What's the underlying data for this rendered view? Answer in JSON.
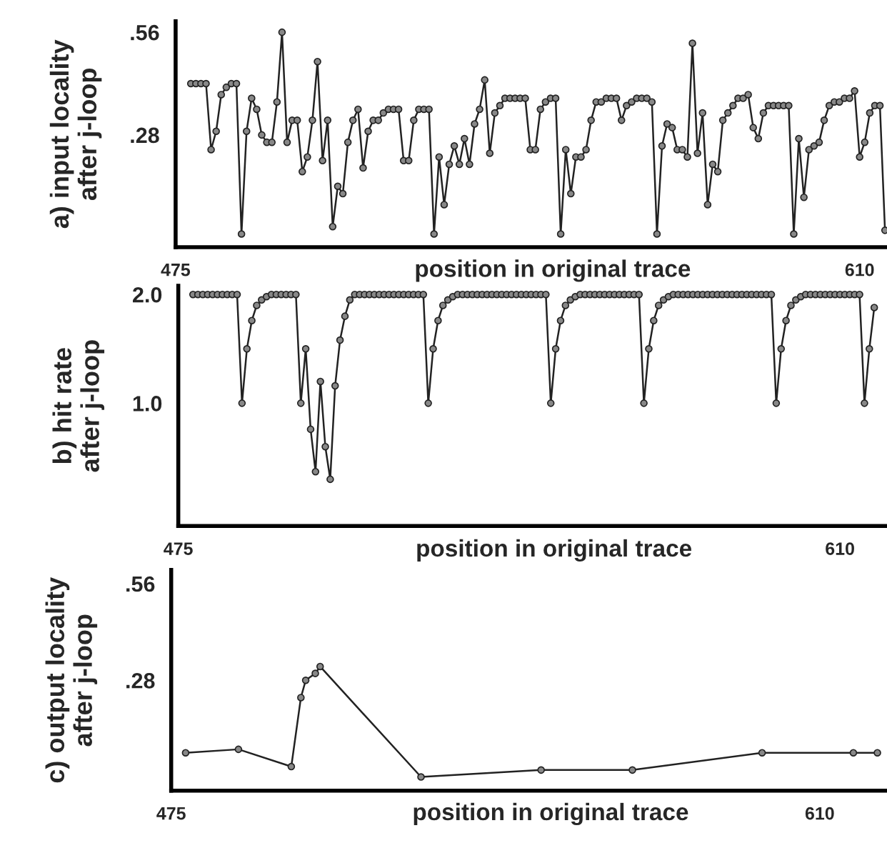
{
  "chart_data": [
    {
      "type": "line",
      "ylabel": "a) input locality\nafter j-loop",
      "xlabel": "position in original trace",
      "xlim": [
        475,
        615.4
      ],
      "ylim": [
        -0.026,
        0.59
      ],
      "xticks": [
        475,
        610
      ],
      "yticks": [
        {
          "value": 0.56,
          "label": ".56"
        },
        {
          "value": 0.28,
          "label": ".28"
        }
      ],
      "grid": false,
      "marker": "circle",
      "line_style": "solid",
      "series": [
        {
          "color": "#222222",
          "x": [
            478,
            479,
            480,
            481,
            482,
            483,
            484,
            485,
            486,
            487,
            488,
            489,
            490,
            491,
            492,
            493,
            494,
            495,
            496,
            497,
            498,
            499,
            500,
            501,
            502,
            503,
            504,
            505,
            506,
            507,
            508,
            509,
            510,
            511,
            512,
            513,
            514,
            515,
            516,
            517,
            518,
            519,
            520,
            521,
            522,
            523,
            524,
            525,
            526,
            527,
            528,
            529,
            530,
            531,
            532,
            533,
            534,
            535,
            536,
            537,
            538,
            539,
            540,
            541,
            542,
            543,
            544,
            545,
            546,
            547,
            548,
            549,
            550,
            551,
            552,
            553,
            554,
            555,
            556,
            557,
            558,
            559,
            560,
            561,
            562,
            563,
            564,
            565,
            566,
            567,
            568,
            569,
            570,
            571,
            572,
            573,
            574,
            575,
            576,
            577,
            578,
            579,
            580,
            581,
            582,
            583,
            584,
            585,
            586,
            587,
            588,
            589,
            590,
            591,
            592,
            593,
            594,
            595,
            596,
            597,
            598,
            599,
            600,
            601,
            602,
            603,
            604,
            605,
            606,
            607,
            608,
            609,
            610,
            611,
            612,
            613,
            614,
            615
          ],
          "values": [
            0.42,
            0.42,
            0.42,
            0.42,
            0.24,
            0.29,
            0.39,
            0.41,
            0.42,
            0.42,
            0.01,
            0.29,
            0.38,
            0.35,
            0.28,
            0.26,
            0.26,
            0.37,
            0.56,
            0.26,
            0.32,
            0.32,
            0.18,
            0.22,
            0.32,
            0.48,
            0.21,
            0.32,
            0.03,
            0.14,
            0.12,
            0.26,
            0.32,
            0.35,
            0.19,
            0.29,
            0.32,
            0.32,
            0.34,
            0.35,
            0.35,
            0.35,
            0.21,
            0.21,
            0.32,
            0.35,
            0.35,
            0.35,
            0.01,
            0.22,
            0.09,
            0.2,
            0.25,
            0.2,
            0.27,
            0.2,
            0.31,
            0.35,
            0.43,
            0.23,
            0.34,
            0.36,
            0.38,
            0.38,
            0.38,
            0.38,
            0.38,
            0.24,
            0.24,
            0.35,
            0.37,
            0.38,
            0.38,
            0.01,
            0.24,
            0.12,
            0.22,
            0.22,
            0.24,
            0.32,
            0.37,
            0.37,
            0.38,
            0.38,
            0.38,
            0.32,
            0.36,
            0.37,
            0.38,
            0.38,
            0.38,
            0.37,
            0.01,
            0.25,
            0.31,
            0.3,
            0.24,
            0.24,
            0.22,
            0.53,
            0.23,
            0.34,
            0.09,
            0.2,
            0.18,
            0.32,
            0.34,
            0.36,
            0.38,
            0.38,
            0.39,
            0.3,
            0.27,
            0.34,
            0.36,
            0.36,
            0.36,
            0.36,
            0.36,
            0.01,
            0.27,
            0.11,
            0.24,
            0.25,
            0.26,
            0.32,
            0.36,
            0.37,
            0.37,
            0.38,
            0.38,
            0.4,
            0.22,
            0.26,
            0.34,
            0.36,
            0.36,
            0.02
          ]
        }
      ]
    },
    {
      "type": "line",
      "ylabel": "b) hit rate\nafter j-loop",
      "xlabel": "position in original trace",
      "xlim": [
        475,
        619.6
      ],
      "ylim": [
        -0.13,
        2.08
      ],
      "xticks": [
        475,
        610
      ],
      "yticks": [
        {
          "value": 2,
          "label": "2.0"
        },
        {
          "value": 1,
          "label": "1.0"
        }
      ],
      "grid": false,
      "marker": "circle",
      "line_style": "solid",
      "series": [
        {
          "color": "#222222",
          "x": [
            478,
            479,
            480,
            481,
            482,
            483,
            484,
            485,
            486,
            487,
            488,
            489,
            490,
            491,
            492,
            493,
            494,
            495,
            496,
            497,
            498,
            499,
            500,
            501,
            502,
            503,
            504,
            505,
            506,
            507,
            508,
            509,
            510,
            511,
            512,
            513,
            514,
            515,
            516,
            517,
            518,
            519,
            520,
            521,
            522,
            523,
            524,
            525,
            526,
            527,
            528,
            529,
            530,
            531,
            532,
            533,
            534,
            535,
            536,
            537,
            538,
            539,
            540,
            541,
            542,
            543,
            544,
            545,
            546,
            547,
            548,
            549,
            550,
            551,
            552,
            553,
            554,
            555,
            556,
            557,
            558,
            559,
            560,
            561,
            562,
            563,
            564,
            565,
            566,
            567,
            568,
            569,
            570,
            571,
            572,
            573,
            574,
            575,
            576,
            577,
            578,
            579,
            580,
            581,
            582,
            583,
            584,
            585,
            586,
            587,
            588,
            589,
            590,
            591,
            592,
            593,
            594,
            595,
            596,
            597,
            598,
            599,
            600,
            601,
            602,
            603,
            604,
            605,
            606,
            607,
            608,
            609,
            610,
            611,
            612,
            613,
            614,
            615,
            616,
            617
          ],
          "values": [
            2,
            2,
            2,
            2,
            2,
            2,
            2,
            2,
            2,
            2,
            1,
            1.5,
            1.76,
            1.9,
            1.95,
            1.98,
            2,
            2,
            2,
            2,
            2,
            2,
            1,
            1.5,
            0.76,
            0.37,
            1.2,
            0.6,
            0.3,
            1.16,
            1.58,
            1.8,
            1.95,
            2,
            2,
            2,
            2,
            2,
            2,
            2,
            2,
            2,
            2,
            2,
            2,
            2,
            2,
            2,
            1,
            1.5,
            1.76,
            1.9,
            1.95,
            1.98,
            2,
            2,
            2,
            2,
            2,
            2,
            2,
            2,
            2,
            2,
            2,
            2,
            2,
            2,
            2,
            2,
            2,
            2,
            2,
            1,
            1.5,
            1.76,
            1.9,
            1.95,
            1.98,
            2,
            2,
            2,
            2,
            2,
            2,
            2,
            2,
            2,
            2,
            2,
            2,
            2,
            1,
            1.5,
            1.76,
            1.9,
            1.95,
            1.98,
            2,
            2,
            2,
            2,
            2,
            2,
            2,
            2,
            2,
            2,
            2,
            2,
            2,
            2,
            2,
            2,
            2,
            2,
            2,
            2,
            2,
            1,
            1.5,
            1.76,
            1.9,
            1.95,
            1.98,
            2,
            2,
            2,
            2,
            2,
            2,
            2,
            2,
            2,
            2,
            2,
            2,
            1,
            1.5,
            1.88
          ]
        }
      ]
    },
    {
      "type": "line",
      "ylabel": "c) output locality\nafter j-loop",
      "xlabel": "position in original trace",
      "xlim": [
        475,
        624
      ],
      "ylim": [
        -0.04,
        0.6
      ],
      "xticks": [
        475,
        610
      ],
      "yticks": [
        {
          "value": 0.56,
          "label": ".56"
        },
        {
          "value": 0.28,
          "label": ".28"
        }
      ],
      "grid": false,
      "marker": "circle",
      "line_style": "solid",
      "series": [
        {
          "color": "#222222",
          "x": [
            478,
            489,
            500,
            502,
            503,
            505,
            506,
            527,
            552,
            571,
            598,
            617,
            622
          ],
          "values": [
            0.07,
            0.08,
            0.03,
            0.23,
            0.28,
            0.3,
            0.32,
            0,
            0.02,
            0.02,
            0.07,
            0.07,
            0.07
          ]
        }
      ]
    }
  ]
}
